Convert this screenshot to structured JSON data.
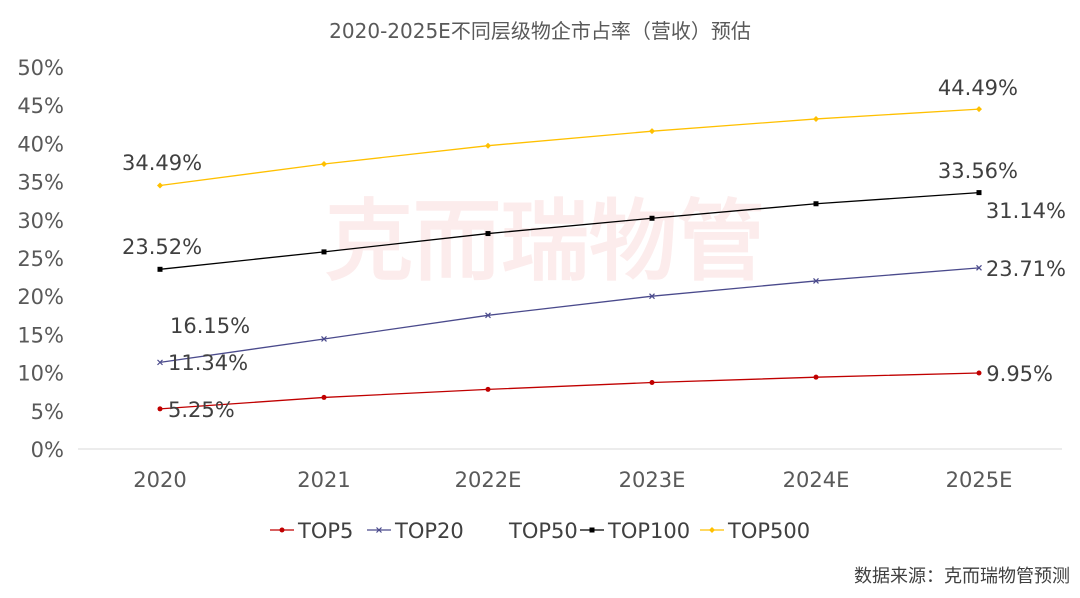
{
  "chart_data": {
    "type": "line",
    "title": "2020-2025E不同层级物企市占率（营收）预估",
    "categories": [
      "2020",
      "2021",
      "2022E",
      "2023E",
      "2024E",
      "2025E"
    ],
    "y_ticks": [
      "0%",
      "5%",
      "10%",
      "15%",
      "20%",
      "25%",
      "30%",
      "35%",
      "40%",
      "45%",
      "50%"
    ],
    "ylim": [
      0,
      50
    ],
    "grid": false,
    "legend_position": "bottom",
    "series": [
      {
        "name": "TOP5",
        "color": "#c00000",
        "marker": "circle",
        "values": [
          5.25,
          6.75,
          7.8,
          8.7,
          9.4,
          9.95
        ]
      },
      {
        "name": "TOP20",
        "color": "#4a4a8c",
        "marker": "x",
        "values": [
          11.34,
          14.4,
          17.5,
          20.0,
          22.0,
          23.71
        ]
      },
      {
        "name": "TOP50",
        "color": "#ffffff",
        "marker": "none",
        "values": [
          16.15,
          null,
          null,
          null,
          null,
          31.14
        ]
      },
      {
        "name": "TOP100",
        "color": "#000000",
        "marker": "square",
        "values": [
          23.52,
          25.8,
          28.2,
          30.2,
          32.1,
          33.56
        ]
      },
      {
        "name": "TOP500",
        "color": "#ffc000",
        "marker": "diamond",
        "values": [
          34.49,
          37.3,
          39.7,
          41.6,
          43.2,
          44.49
        ]
      }
    ],
    "data_labels": [
      "5.25%",
      "9.95%",
      "11.34%",
      "23.71%",
      "16.15%",
      "31.14%",
      "23.52%",
      "33.56%",
      "34.49%",
      "44.49%"
    ]
  },
  "source_note": "数据来源：克而瑞物管预测",
  "watermark": "克而瑞物管"
}
